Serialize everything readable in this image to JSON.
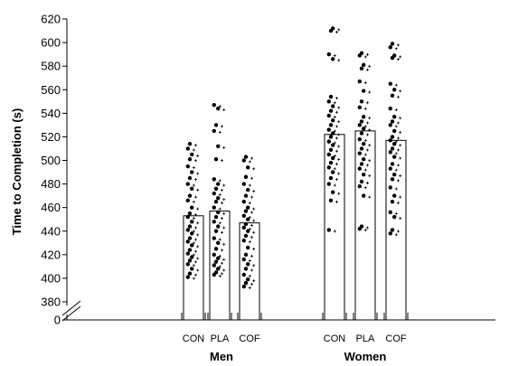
{
  "chart_data": {
    "type": "bar",
    "title": "",
    "xlabel": "",
    "ylabel": "Time to Completion (s)",
    "ylim": [
      380,
      620
    ],
    "axis_break": true,
    "y_ticks": [
      0,
      380,
      400,
      420,
      440,
      460,
      480,
      500,
      520,
      540,
      560,
      580,
      600,
      620
    ],
    "grid": false,
    "groups": [
      {
        "name": "Men",
        "categories": [
          "CON",
          "PLA",
          "COF"
        ],
        "values": [
          453,
          457,
          447
        ],
        "points": [
          [
            401,
            404,
            408,
            412,
            415,
            418,
            421,
            424,
            428,
            431,
            434,
            438,
            441,
            444,
            448,
            452,
            455,
            460,
            466,
            470,
            476,
            480,
            485,
            490,
            495,
            501,
            505,
            510,
            514
          ],
          [
            403,
            405,
            408,
            411,
            414,
            417,
            420,
            425,
            430,
            434,
            440,
            444,
            448,
            452,
            456,
            460,
            465,
            468,
            472,
            476,
            480,
            484,
            501,
            512,
            525,
            530,
            544,
            547
          ],
          [
            393,
            396,
            399,
            403,
            408,
            412,
            416,
            420,
            426,
            432,
            436,
            440,
            443,
            446,
            450,
            453,
            457,
            460,
            465,
            470,
            475,
            480,
            486,
            494,
            500,
            503
          ]
        ]
      },
      {
        "name": "Women",
        "categories": [
          "CON",
          "PLA",
          "COF"
        ],
        "values": [
          522,
          525,
          517
        ],
        "points": [
          [
            441,
            466,
            473,
            480,
            485,
            490,
            494,
            498,
            502,
            505,
            509,
            513,
            516,
            520,
            523,
            526,
            530,
            534,
            538,
            542,
            546,
            550,
            554,
            586,
            590,
            610,
            612
          ],
          [
            442,
            444,
            470,
            478,
            482,
            488,
            493,
            497,
            501,
            506,
            510,
            514,
            518,
            523,
            527,
            530,
            533,
            537,
            545,
            550,
            559,
            567,
            578,
            581,
            589,
            591
          ],
          [
            438,
            441,
            452,
            456,
            465,
            470,
            477,
            484,
            488,
            493,
            497,
            503,
            507,
            510,
            514,
            517,
            520,
            525,
            530,
            533,
            537,
            544,
            555,
            560,
            565,
            587,
            589,
            596,
            599
          ]
        ]
      }
    ]
  }
}
